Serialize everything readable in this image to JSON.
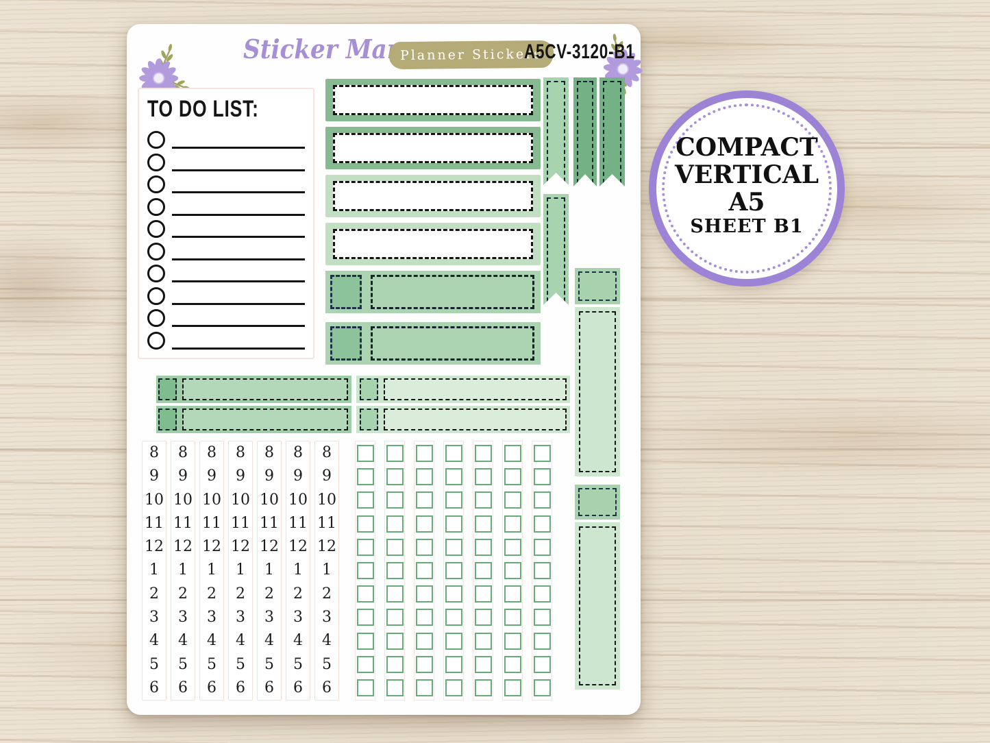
{
  "product": {
    "brand": "Sticker Mama",
    "tagline": "Planner Stickers",
    "sku": "A5CV-3120-B1"
  },
  "badge": {
    "lines": [
      "COMPACT",
      "VERTICAL",
      "A5",
      "SHEET B1"
    ]
  },
  "sheet": {
    "todo": {
      "title": "TO DO LIST:",
      "rows": 10
    },
    "header_boxes": [
      "medium",
      "medium",
      "light",
      "light"
    ],
    "flags": [
      "light",
      "dark",
      "dark",
      "light"
    ],
    "washi_boxes": 2,
    "vertical_stickers": 2,
    "label_strips": {
      "rows": 2,
      "columns": 2
    },
    "hour_strips": {
      "columns": 7,
      "hours": [
        "8",
        "9",
        "10",
        "11",
        "12",
        "1",
        "2",
        "3",
        "4",
        "5",
        "6"
      ]
    },
    "checkbox_grid": {
      "columns": 7,
      "rows": 11
    }
  },
  "colors": {
    "green-mid": "#87ba90",
    "green-light": "#c2dfc3",
    "washi-bg": "#abd2b1",
    "washi-square": "#8cc39a",
    "flag-light": "#a8d3af",
    "flag-dark": "#74b184",
    "strip-left-bg": "#a0cda9",
    "strip-left-square": "#7fbc8e",
    "strip-left-inner": "#b3d8b9",
    "strip-right-bg": "#cbe5ce",
    "strip-right-square": "#a8d3af",
    "strip-right-inner": "#d9edda",
    "vert-header": "#a8d1ae",
    "vert-body": "#cde6d0",
    "check-border": "#67ab79",
    "brand-purple": "#a78fd6",
    "tagline-olive": "#b4ab77",
    "badge-ring": "#9c83d5",
    "badge-dot": "#a68fd8",
    "petal-purple": "#b29bdc",
    "leaf-olive": "#9fa35e"
  }
}
